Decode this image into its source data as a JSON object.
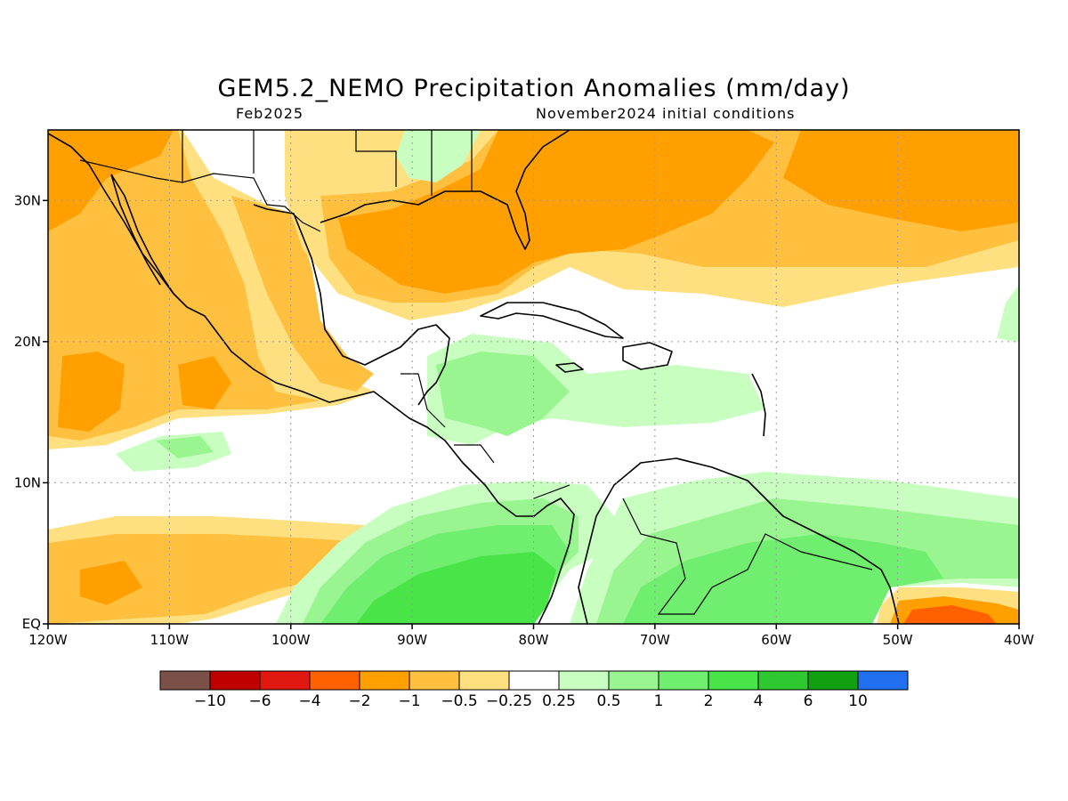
{
  "title": "GEM5.2_NEMO Precipitation Anomalies (mm/day)",
  "subtitle_left": "Feb2025",
  "subtitle_right": "November2024 initial conditions",
  "map": {
    "lon_range": [
      -120,
      -40
    ],
    "lat_range": [
      0,
      35
    ],
    "lon_ticks": [
      {
        "value": -120,
        "label": "120W"
      },
      {
        "value": -110,
        "label": "110W"
      },
      {
        "value": -100,
        "label": "100W"
      },
      {
        "value": -90,
        "label": "90W"
      },
      {
        "value": -80,
        "label": "80W"
      },
      {
        "value": -70,
        "label": "70W"
      },
      {
        "value": -60,
        "label": "60W"
      },
      {
        "value": -50,
        "label": "50W"
      },
      {
        "value": -40,
        "label": "40W"
      }
    ],
    "lat_ticks": [
      {
        "value": 0,
        "label": "EQ"
      },
      {
        "value": 10,
        "label": "10N"
      },
      {
        "value": 20,
        "label": "20N"
      },
      {
        "value": 30,
        "label": "30N"
      }
    ]
  },
  "colorbar": {
    "colors": [
      "#7a5048",
      "#c00000",
      "#e01810",
      "#ff6000",
      "#ffa000",
      "#ffc040",
      "#ffe080",
      "#ffffff",
      "#c8ffc0",
      "#98f590",
      "#70ee70",
      "#48e448",
      "#30c830",
      "#10a010",
      "#2070f0"
    ],
    "labels": [
      "−10",
      "−6",
      "−4",
      "−2",
      "−1",
      "−0.5",
      "−0.25",
      "0.25",
      "0.5",
      "1",
      "2",
      "4",
      "6",
      "10"
    ]
  },
  "colors": {
    "orange_dark": "#ffa000",
    "orange": "#ffc040",
    "yellow": "#ffe080",
    "green_light": "#c8ffc0",
    "green": "#98f590",
    "green_mid": "#70ee70",
    "green_dark": "#48e448",
    "red_orange": "#ff6000"
  }
}
